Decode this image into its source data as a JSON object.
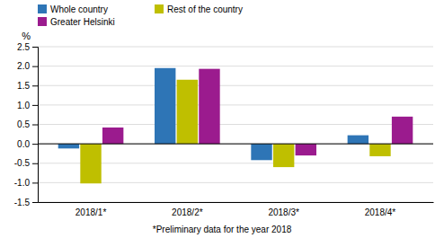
{
  "chart_data": {
    "type": "bar",
    "categories": [
      "2018/1*",
      "2018/2*",
      "2018/3*",
      "2018/4*"
    ],
    "series": [
      {
        "name": "Whole country",
        "color": "#2E75B6",
        "values": [
          -0.12,
          1.95,
          -0.42,
          0.22
        ]
      },
      {
        "name": "Rest of the country",
        "color": "#BFBF00",
        "values": [
          -1.02,
          1.65,
          -0.6,
          -0.32
        ]
      },
      {
        "name": "Greater Helsinki",
        "color": "#9B1B8E",
        "values": [
          0.42,
          1.93,
          -0.3,
          0.7
        ]
      }
    ],
    "ylabel": "%",
    "ylim": [
      -1.5,
      2.5
    ],
    "yticks": [
      -1.5,
      {
        "value": -1.0,
        "label": "-1.0"
      },
      -0.5,
      {
        "value": 0.0,
        "label": "0.0"
      },
      0.5,
      {
        "value": 1.0,
        "label": "1.0"
      },
      1.5,
      {
        "value": 2.0,
        "label": "2.0"
      },
      2.5
    ],
    "grid": true,
    "legend": "upper left",
    "annotations": [
      "*Preliminary data for the year 2018"
    ]
  }
}
